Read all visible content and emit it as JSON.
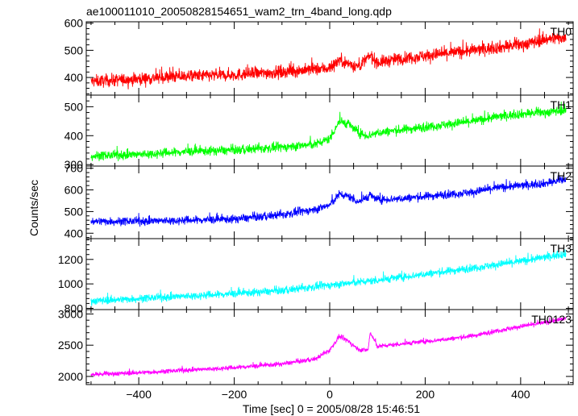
{
  "chart_data": {
    "type": "line",
    "title": "ae100011010_20050828154651_wam2_trn_4band_long.qdp",
    "xlabel": "Time [sec] 0 = 2005/08/28 15:46:51",
    "ylabel": "Counts/sec",
    "xlim": [
      -510,
      510
    ],
    "xticks": [
      -400,
      -200,
      0,
      200,
      400
    ],
    "xtick_labels": [
      "−400",
      "−200",
      "0",
      "200",
      "400"
    ],
    "grid": false,
    "panels": [
      {
        "name": "TH0",
        "color": "#ff0000",
        "ylim": [
          335,
          605
        ],
        "yticks": [
          400,
          500,
          600
        ],
        "x": [
          -500,
          -400,
          -300,
          -200,
          -100,
          0,
          20,
          40,
          60,
          85,
          100,
          150,
          200,
          250,
          300,
          350,
          400,
          450,
          500
        ],
        "y": [
          385,
          395,
          405,
          410,
          420,
          435,
          465,
          450,
          440,
          480,
          455,
          470,
          480,
          490,
          500,
          510,
          520,
          540,
          550
        ],
        "noise": 22
      },
      {
        "name": "TH1",
        "color": "#00ff00",
        "ylim": [
          295,
          540
        ],
        "yticks": [
          300,
          400,
          500
        ],
        "x": [
          -500,
          -400,
          -300,
          -200,
          -100,
          -30,
          0,
          20,
          40,
          60,
          80,
          100,
          150,
          200,
          250,
          300,
          350,
          400,
          450,
          500
        ],
        "y": [
          330,
          335,
          345,
          350,
          360,
          370,
          390,
          450,
          440,
          410,
          400,
          410,
          420,
          430,
          440,
          450,
          465,
          475,
          480,
          490
        ],
        "noise": 15
      },
      {
        "name": "TH2",
        "color": "#0000ff",
        "ylim": [
          375,
          710
        ],
        "yticks": [
          400,
          500,
          600,
          700
        ],
        "x": [
          -500,
          -400,
          -300,
          -200,
          -100,
          -30,
          0,
          20,
          40,
          60,
          85,
          100,
          150,
          200,
          250,
          300,
          350,
          400,
          450,
          500
        ],
        "y": [
          455,
          455,
          460,
          465,
          485,
          510,
          530,
          580,
          570,
          545,
          575,
          555,
          560,
          570,
          580,
          590,
          610,
          620,
          630,
          650
        ],
        "noise": 18
      },
      {
        "name": "TH3",
        "color": "#00ffff",
        "ylim": [
          790,
          1370
        ],
        "yticks": [
          800,
          1000,
          1200
        ],
        "x": [
          -500,
          -400,
          -300,
          -200,
          -100,
          0,
          100,
          200,
          300,
          400,
          500
        ],
        "y": [
          860,
          880,
          900,
          920,
          945,
          990,
          1030,
          1080,
          1130,
          1185,
          1250
        ],
        "noise": 30
      },
      {
        "name": "TH0123",
        "color": "#ff00ff",
        "ylim": [
          1870,
          3070
        ],
        "yticks": [
          2000,
          2500,
          3000
        ],
        "x": [
          -500,
          -400,
          -300,
          -200,
          -100,
          -30,
          0,
          20,
          40,
          60,
          80,
          85,
          100,
          150,
          200,
          250,
          300,
          350,
          400,
          450,
          500
        ],
        "y": [
          2030,
          2060,
          2100,
          2140,
          2200,
          2280,
          2420,
          2640,
          2560,
          2430,
          2420,
          2700,
          2480,
          2520,
          2560,
          2600,
          2650,
          2730,
          2800,
          2860,
          2930
        ],
        "noise": 35
      }
    ]
  }
}
